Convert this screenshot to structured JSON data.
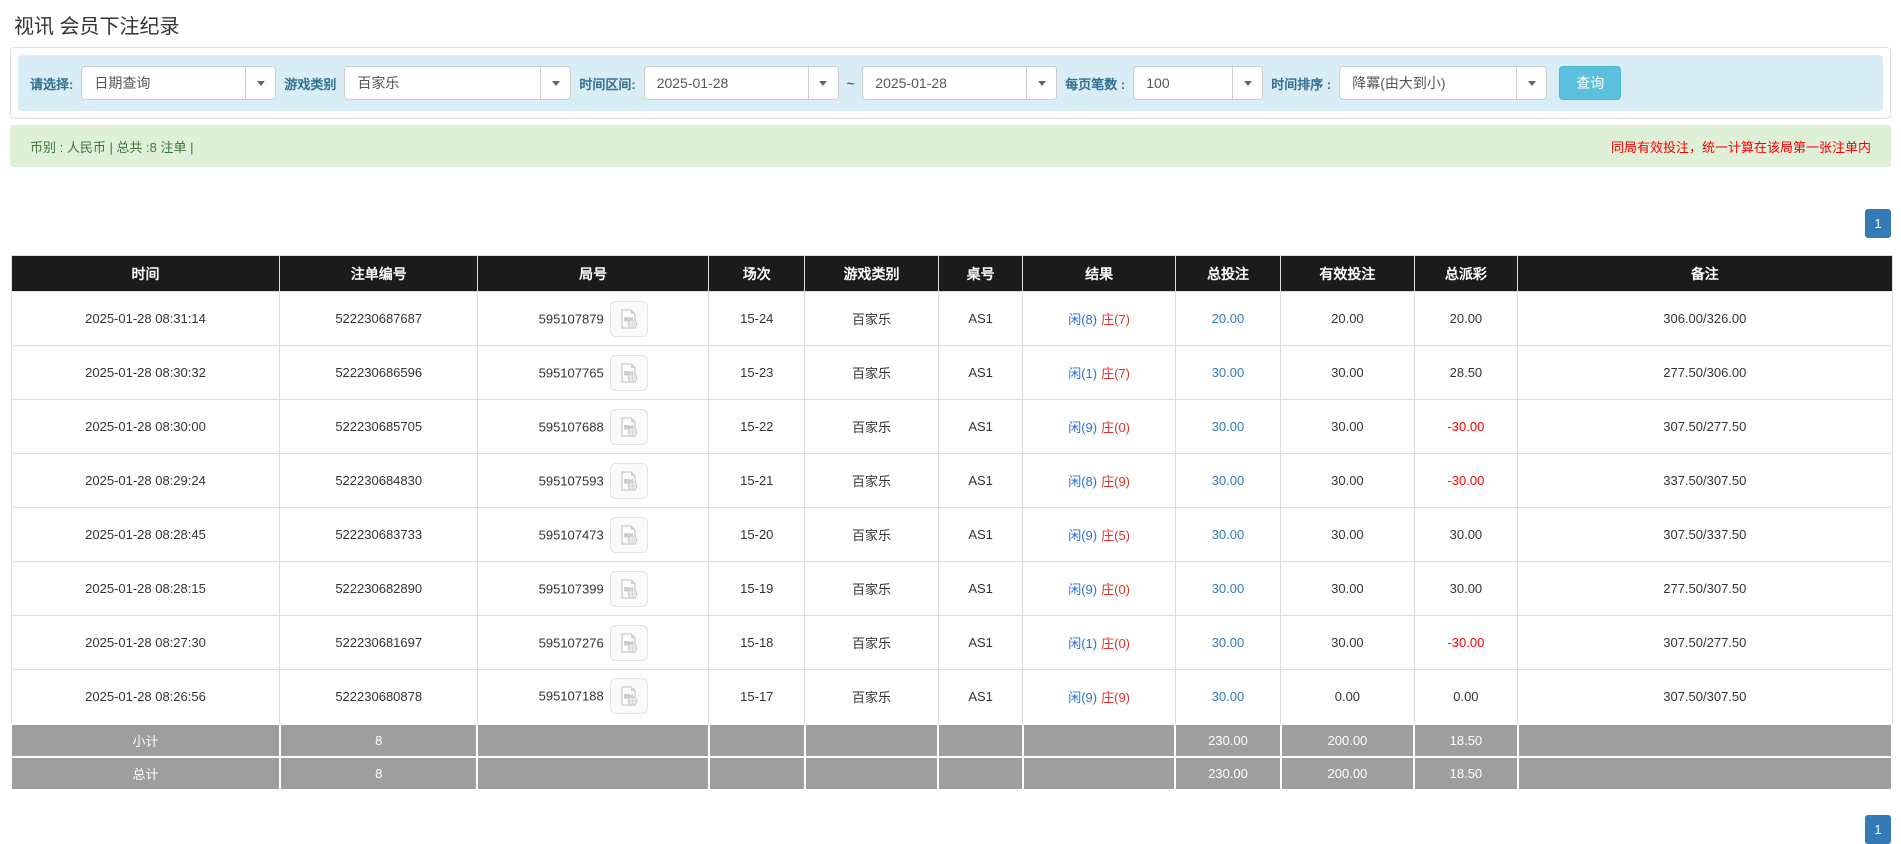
{
  "page": {
    "title": "视讯 会员下注纪录"
  },
  "filters": {
    "select_label": "请选择:",
    "select_value": "日期查询",
    "game_type_label": "游戏类别",
    "game_type_value": "百家乐",
    "date_range_label": "时间区间:",
    "date_from": "2025-01-28",
    "date_to": "2025-01-28",
    "range_separator": "~",
    "page_size_label": "每页笔数 :",
    "page_size_value": "100",
    "sort_label": "时间排序 :",
    "sort_value": "降冪(由大到小)",
    "search_button": "查询"
  },
  "summary": {
    "left_text": "币别 : 人民币 | 总共 :8 注单 |",
    "right_note": "同局有效投注，统一计算在该局第一张注单内"
  },
  "pagination": {
    "page": "1"
  },
  "colors": {
    "filter_bg": "#d9edf7",
    "filter_label": "#31708f",
    "search_button_bg": "#5bc0de",
    "summary_bg": "#dff0d8",
    "summary_text": "#3c763d",
    "summary_note_red": "#ff0000",
    "header_bg": "#1b1b1b",
    "subtotal_bg": "#9e9e9e",
    "pagination_blue": "#337ab7",
    "link_blue": "#337ab7",
    "player_blue": "#2a6fdb",
    "banker_red": "#d9352f",
    "negative_red": "#ff0000"
  },
  "table": {
    "headers": [
      "时间",
      "注单编号",
      "局号",
      "场次",
      "游戏类别",
      "桌号",
      "结果",
      "总投注",
      "有效投注",
      "总派彩",
      "备注"
    ],
    "rows": [
      {
        "time": "2025-01-28 08:31:14",
        "bet_id": "522230687687",
        "round_id": "595107879",
        "session": "15-24",
        "game": "百家乐",
        "table_no": "AS1",
        "result_player": "闲(8)",
        "result_banker": "庄(7)",
        "total_bet": "20.00",
        "valid_bet": "20.00",
        "payout": "20.00",
        "remark": "306.00/326.00"
      },
      {
        "time": "2025-01-28 08:30:32",
        "bet_id": "522230686596",
        "round_id": "595107765",
        "session": "15-23",
        "game": "百家乐",
        "table_no": "AS1",
        "result_player": "闲(1)",
        "result_banker": "庄(7)",
        "total_bet": "30.00",
        "valid_bet": "30.00",
        "payout": "28.50",
        "remark": "277.50/306.00"
      },
      {
        "time": "2025-01-28 08:30:00",
        "bet_id": "522230685705",
        "round_id": "595107688",
        "session": "15-22",
        "game": "百家乐",
        "table_no": "AS1",
        "result_player": "闲(9)",
        "result_banker": "庄(0)",
        "total_bet": "30.00",
        "valid_bet": "30.00",
        "payout": "-30.00",
        "remark": "307.50/277.50"
      },
      {
        "time": "2025-01-28 08:29:24",
        "bet_id": "522230684830",
        "round_id": "595107593",
        "session": "15-21",
        "game": "百家乐",
        "table_no": "AS1",
        "result_player": "闲(8)",
        "result_banker": "庄(9)",
        "total_bet": "30.00",
        "valid_bet": "30.00",
        "payout": "-30.00",
        "remark": "337.50/307.50"
      },
      {
        "time": "2025-01-28 08:28:45",
        "bet_id": "522230683733",
        "round_id": "595107473",
        "session": "15-20",
        "game": "百家乐",
        "table_no": "AS1",
        "result_player": "闲(9)",
        "result_banker": "庄(5)",
        "total_bet": "30.00",
        "valid_bet": "30.00",
        "payout": "30.00",
        "remark": "307.50/337.50"
      },
      {
        "time": "2025-01-28 08:28:15",
        "bet_id": "522230682890",
        "round_id": "595107399",
        "session": "15-19",
        "game": "百家乐",
        "table_no": "AS1",
        "result_player": "闲(9)",
        "result_banker": "庄(0)",
        "total_bet": "30.00",
        "valid_bet": "30.00",
        "payout": "30.00",
        "remark": "277.50/307.50"
      },
      {
        "time": "2025-01-28 08:27:30",
        "bet_id": "522230681697",
        "round_id": "595107276",
        "session": "15-18",
        "game": "百家乐",
        "table_no": "AS1",
        "result_player": "闲(1)",
        "result_banker": "庄(0)",
        "total_bet": "30.00",
        "valid_bet": "30.00",
        "payout": "-30.00",
        "remark": "307.50/277.50"
      },
      {
        "time": "2025-01-28 08:26:56",
        "bet_id": "522230680878",
        "round_id": "595107188",
        "session": "15-17",
        "game": "百家乐",
        "table_no": "AS1",
        "result_player": "闲(9)",
        "result_banker": "庄(9)",
        "total_bet": "30.00",
        "valid_bet": "0.00",
        "payout": "0.00",
        "remark": "307.50/307.50"
      }
    ],
    "subtotal": {
      "label": "小计",
      "count": "8",
      "total_bet": "230.00",
      "valid_bet": "200.00",
      "payout": "18.50"
    },
    "total": {
      "label": "总计",
      "count": "8",
      "total_bet": "230.00",
      "valid_bet": "200.00",
      "payout": "18.50"
    }
  }
}
